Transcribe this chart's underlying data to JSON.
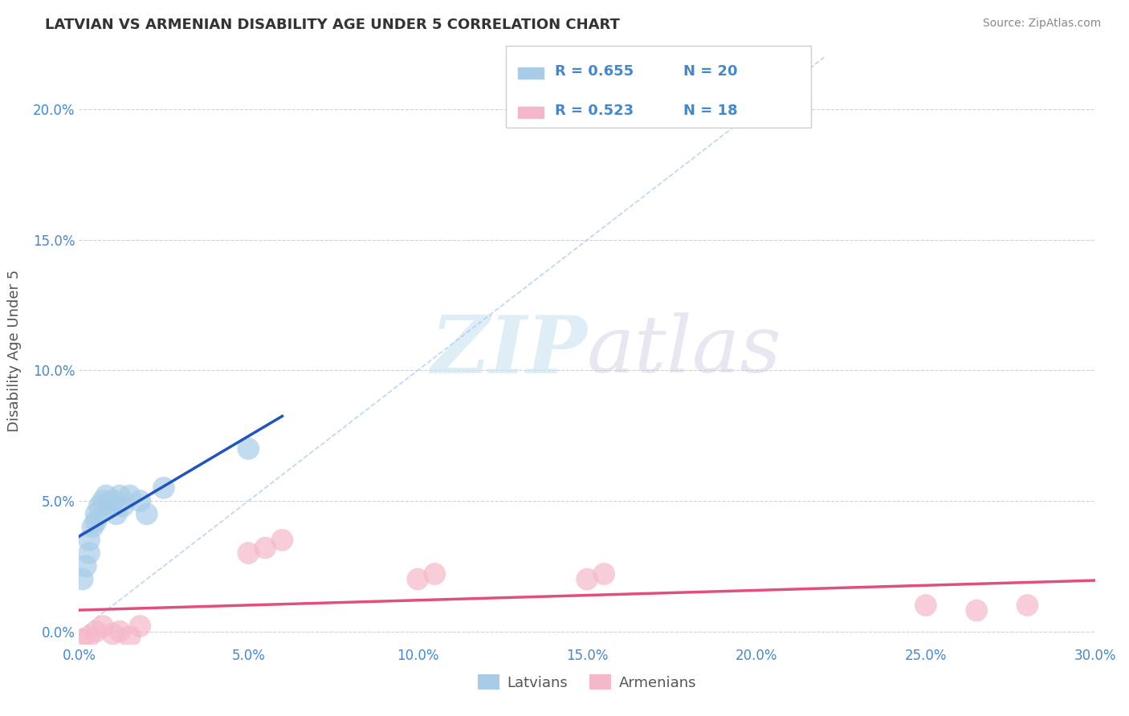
{
  "title": "LATVIAN VS ARMENIAN DISABILITY AGE UNDER 5 CORRELATION CHART",
  "source_text": "Source: ZipAtlas.com",
  "ylabel": "Disability Age Under 5",
  "xlim": [
    0.0,
    0.3
  ],
  "ylim": [
    -0.005,
    0.22
  ],
  "xticks": [
    0.0,
    0.05,
    0.1,
    0.15,
    0.2,
    0.25,
    0.3
  ],
  "yticks": [
    0.0,
    0.05,
    0.1,
    0.15,
    0.2
  ],
  "xtick_labels": [
    "0.0%",
    "5.0%",
    "10.0%",
    "15.0%",
    "20.0%",
    "25.0%",
    "30.0%"
  ],
  "ytick_labels": [
    "0.0%",
    "5.0%",
    "10.0%",
    "15.0%",
    "20.0%"
  ],
  "latvian_x": [
    0.001,
    0.002,
    0.003,
    0.003,
    0.004,
    0.005,
    0.005,
    0.006,
    0.007,
    0.008,
    0.009,
    0.01,
    0.011,
    0.012,
    0.013,
    0.015,
    0.018,
    0.02,
    0.025,
    0.05
  ],
  "latvian_y": [
    0.02,
    0.025,
    0.03,
    0.035,
    0.04,
    0.042,
    0.045,
    0.048,
    0.05,
    0.052,
    0.048,
    0.05,
    0.045,
    0.052,
    0.048,
    0.052,
    0.05,
    0.045,
    0.055,
    0.07
  ],
  "armenian_x": [
    0.001,
    0.003,
    0.005,
    0.007,
    0.01,
    0.012,
    0.015,
    0.018,
    0.05,
    0.055,
    0.06,
    0.1,
    0.105,
    0.15,
    0.155,
    0.25,
    0.265,
    0.28
  ],
  "armenian_y": [
    -0.003,
    -0.002,
    0.0,
    0.002,
    -0.001,
    0.0,
    -0.002,
    0.002,
    0.03,
    0.032,
    0.035,
    0.02,
    0.022,
    0.02,
    0.022,
    0.01,
    0.008,
    0.01
  ],
  "latvian_color": "#a8cce8",
  "armenian_color": "#f5b8c8",
  "latvian_line_color": "#2255bb",
  "armenian_line_color": "#e0507a",
  "R_latvian": 0.655,
  "N_latvian": 20,
  "R_armenian": 0.523,
  "N_armenian": 18,
  "legend_label_latvian": "Latvians",
  "legend_label_armenian": "Armenians",
  "watermark_zip": "ZIP",
  "watermark_atlas": "atlas",
  "background_color": "#ffffff",
  "title_color": "#333333",
  "axis_label_color": "#555555",
  "tick_color": "#4488cc",
  "grid_color": "#cccccc",
  "source_color": "#888888",
  "diag_color": "#aaccee"
}
